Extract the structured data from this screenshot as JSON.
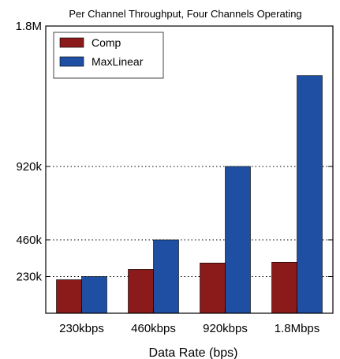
{
  "chart_data": {
    "type": "bar",
    "title": "Per Channel Throughput, Four Channels Operating",
    "xlabel": "Data Rate (bps)",
    "ylabel": "",
    "categories": [
      "230kbps",
      "460kbps",
      "920kbps",
      "1.8Mbps"
    ],
    "series": [
      {
        "name": "Comp",
        "color": "#8b1a1a",
        "values": [
          210000,
          275000,
          315000,
          320000
        ]
      },
      {
        "name": "MaxLinear",
        "color": "#1f4fa3",
        "values": [
          230000,
          460000,
          920000,
          1490000
        ]
      }
    ],
    "ylim": [
      0,
      1800000
    ],
    "yticks": [
      {
        "value": 230000,
        "label": "230k"
      },
      {
        "value": 460000,
        "label": "460k"
      },
      {
        "value": 920000,
        "label": "920k"
      },
      {
        "value": 1800000,
        "label": "1.8M"
      }
    ],
    "grid": "horizontal dotted at y ticks",
    "legend_position": "top-left"
  }
}
